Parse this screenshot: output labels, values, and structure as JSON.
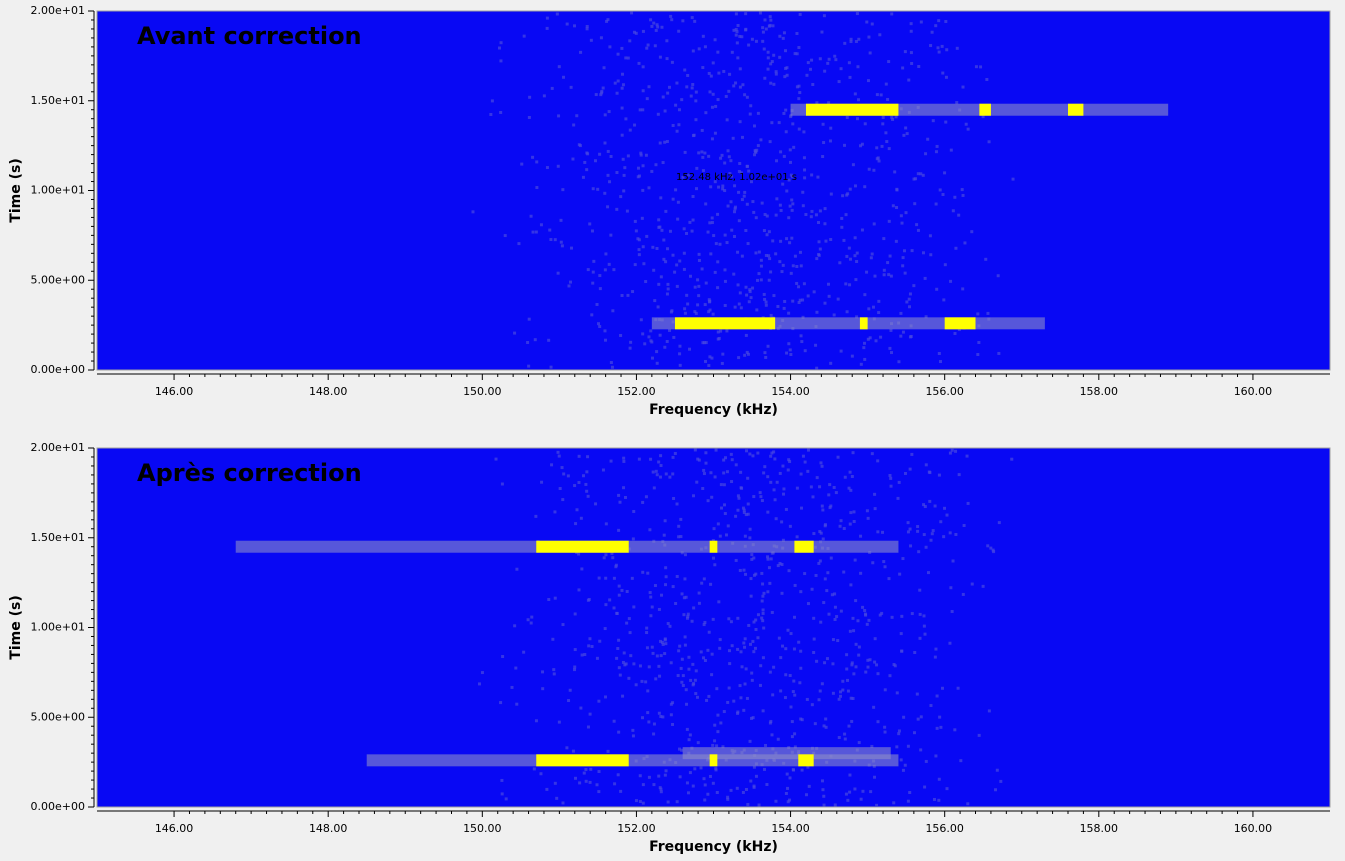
{
  "chart_data": [
    {
      "type": "spectrogram",
      "title": "Avant correction",
      "xlabel": "Frequency (kHz)",
      "ylabel": "Time (s)",
      "xlim": [
        145,
        161
      ],
      "ylim": [
        0,
        20
      ],
      "xticks": [
        {
          "value": 146,
          "label": "146.00"
        },
        {
          "value": 148,
          "label": "148.00"
        },
        {
          "value": 150,
          "label": "150.00"
        },
        {
          "value": 152,
          "label": "152.00"
        },
        {
          "value": 154,
          "label": "154.00"
        },
        {
          "value": 156,
          "label": "156.00"
        },
        {
          "value": 158,
          "label": "158.00"
        },
        {
          "value": 160,
          "label": "160.00"
        }
      ],
      "yticks": [
        {
          "value": 0,
          "label": "0.00e+00"
        },
        {
          "value": 5,
          "label": "5.00e+00"
        },
        {
          "value": 10,
          "label": "1.00e+01"
        },
        {
          "value": 15,
          "label": "1.50e+01"
        },
        {
          "value": 20,
          "label": "2.00e+01"
        }
      ],
      "background": "#0808f4",
      "signal_color": "#8c8cc8",
      "peak_color": "#ffff00",
      "title_color": "#e8303a",
      "signals": [
        {
          "x": [
            154.0,
            158.9
          ],
          "t": 14.5
        },
        {
          "x": [
            152.2,
            157.3
          ],
          "t": 2.6
        }
      ],
      "peaks": [
        {
          "x": [
            154.2,
            155.4
          ],
          "t": 14.5
        },
        {
          "x": [
            156.45,
            156.6
          ],
          "t": 14.5
        },
        {
          "x": [
            157.6,
            157.8
          ],
          "t": 14.5
        },
        {
          "x": [
            152.5,
            153.8
          ],
          "t": 2.6
        },
        {
          "x": [
            154.9,
            155.0
          ],
          "t": 2.6
        },
        {
          "x": [
            156.0,
            156.4
          ],
          "t": 2.6
        }
      ],
      "annotation": "152.48 kHz, 1.02e+01 s"
    },
    {
      "type": "spectrogram",
      "title": "Après correction",
      "xlabel": "Frequency (kHz)",
      "ylabel": "Time (s)",
      "xlim": [
        145,
        161
      ],
      "ylim": [
        0,
        20
      ],
      "xticks": [
        {
          "value": 146,
          "label": "146.00"
        },
        {
          "value": 148,
          "label": "148.00"
        },
        {
          "value": 150,
          "label": "150.00"
        },
        {
          "value": 152,
          "label": "152.00"
        },
        {
          "value": 154,
          "label": "154.00"
        },
        {
          "value": 156,
          "label": "156.00"
        },
        {
          "value": 158,
          "label": "158.00"
        },
        {
          "value": 160,
          "label": "160.00"
        }
      ],
      "yticks": [
        {
          "value": 0,
          "label": "0.00e+00"
        },
        {
          "value": 5,
          "label": "5.00e+00"
        },
        {
          "value": 10,
          "label": "1.00e+01"
        },
        {
          "value": 15,
          "label": "1.50e+01"
        },
        {
          "value": 20,
          "label": "2.00e+01"
        }
      ],
      "background": "#0808f4",
      "signal_color": "#8c8cc8",
      "peak_color": "#ffff00",
      "title_color": "#e8303a",
      "signals": [
        {
          "x": [
            146.8,
            155.4
          ],
          "t": 14.5
        },
        {
          "x": [
            148.5,
            155.4
          ],
          "t": 2.6
        },
        {
          "x": [
            152.6,
            155.3
          ],
          "t": 3.0
        }
      ],
      "peaks": [
        {
          "x": [
            150.7,
            151.9
          ],
          "t": 14.5
        },
        {
          "x": [
            152.95,
            153.05
          ],
          "t": 14.5
        },
        {
          "x": [
            154.05,
            154.3
          ],
          "t": 14.5
        },
        {
          "x": [
            150.7,
            151.9
          ],
          "t": 2.6
        },
        {
          "x": [
            152.95,
            153.05
          ],
          "t": 2.6
        },
        {
          "x": [
            154.1,
            154.3
          ],
          "t": 2.6
        }
      ]
    }
  ]
}
